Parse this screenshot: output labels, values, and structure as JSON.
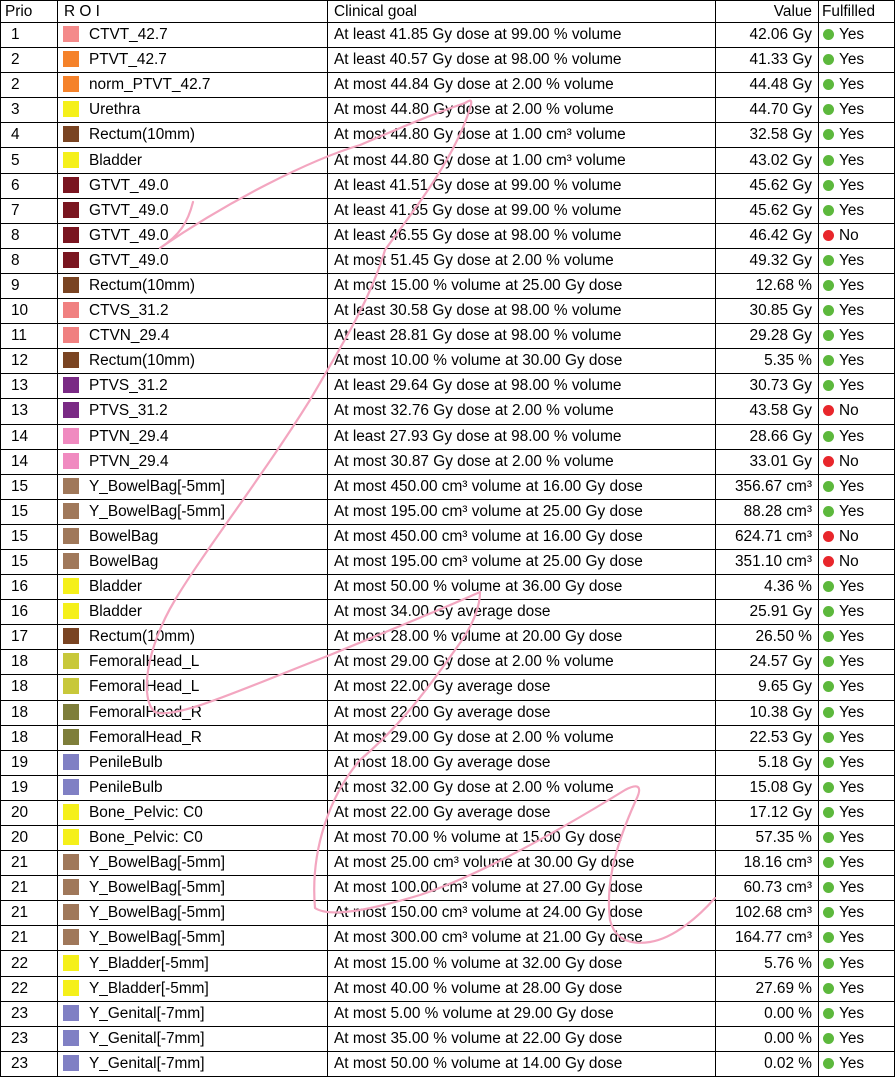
{
  "headers": {
    "prio": "Prio",
    "roi": "R O I",
    "goal": "Clinical goal",
    "value": "Value",
    "fulfilled": "Fulfilled"
  },
  "status_colors": {
    "yes": "#5cb83c",
    "no": "#e8262b"
  },
  "rows": [
    {
      "prio": "1",
      "roi": "CTVT_42.7",
      "color": "#f48a8a",
      "goal": "At least 41.85 Gy dose at 99.00 % volume",
      "value": "42.06 Gy",
      "ok": true,
      "status": "Yes"
    },
    {
      "prio": "2",
      "roi": "PTVT_42.7",
      "color": "#f5822a",
      "goal": "At least 40.57 Gy dose at 98.00 % volume",
      "value": "41.33 Gy",
      "ok": true,
      "status": "Yes"
    },
    {
      "prio": "2",
      "roi": "norm_PTVT_42.7",
      "color": "#f5822a",
      "goal": "At most 44.84 Gy dose at 2.00 % volume",
      "value": "44.48 Gy",
      "ok": true,
      "status": "Yes"
    },
    {
      "prio": "3",
      "roi": "Urethra",
      "color": "#f5f01a",
      "goal": "At most 44.80 Gy dose at 2.00 % volume",
      "value": "44.70 Gy",
      "ok": true,
      "status": "Yes"
    },
    {
      "prio": "4",
      "roi": "Rectum(10mm)",
      "color": "#7a4422",
      "goal": "At most 44.80 Gy dose at 1.00 cm³ volume",
      "value": "32.58 Gy",
      "ok": true,
      "status": "Yes"
    },
    {
      "prio": "5",
      "roi": "Bladder",
      "color": "#f5f01a",
      "goal": "At most 44.80 Gy dose at 1.00 cm³ volume",
      "value": "43.02 Gy",
      "ok": true,
      "status": "Yes"
    },
    {
      "prio": "6",
      "roi": "GTVT_49.0",
      "color": "#7a1520",
      "goal": "At least 41.51 Gy dose at 99.00 % volume",
      "value": "45.62 Gy",
      "ok": true,
      "status": "Yes"
    },
    {
      "prio": "7",
      "roi": "GTVT_49.0",
      "color": "#7a1520",
      "goal": "At least 41.85 Gy dose at 99.00 % volume",
      "value": "45.62 Gy",
      "ok": true,
      "status": "Yes"
    },
    {
      "prio": "8",
      "roi": "GTVT_49.0",
      "color": "#7a1520",
      "goal": "At least 46.55 Gy dose at 98.00 % volume",
      "value": "46.42 Gy",
      "ok": false,
      "status": "No"
    },
    {
      "prio": "8",
      "roi": "GTVT_49.0",
      "color": "#7a1520",
      "goal": "At most 51.45 Gy dose at 2.00 % volume",
      "value": "49.32 Gy",
      "ok": true,
      "status": "Yes"
    },
    {
      "prio": "9",
      "roi": "Rectum(10mm)",
      "color": "#7a4422",
      "goal": "At most 15.00 % volume at 25.00 Gy dose",
      "value": "12.68 %",
      "ok": true,
      "status": "Yes"
    },
    {
      "prio": "10",
      "roi": "CTVS_31.2",
      "color": "#f08080",
      "goal": "At least 30.58 Gy dose at 98.00 % volume",
      "value": "30.85 Gy",
      "ok": true,
      "status": "Yes"
    },
    {
      "prio": "11",
      "roi": "CTVN_29.4",
      "color": "#f08080",
      "goal": "At least 28.81 Gy dose at 98.00 % volume",
      "value": "29.28 Gy",
      "ok": true,
      "status": "Yes"
    },
    {
      "prio": "12",
      "roi": "Rectum(10mm)",
      "color": "#7a4422",
      "goal": "At most 10.00 % volume at 30.00 Gy dose",
      "value": "5.35 %",
      "ok": true,
      "status": "Yes"
    },
    {
      "prio": "13",
      "roi": "PTVS_31.2",
      "color": "#7a2a85",
      "goal": "At least 29.64 Gy dose at 98.00 % volume",
      "value": "30.73 Gy",
      "ok": true,
      "status": "Yes"
    },
    {
      "prio": "13",
      "roi": "PTVS_31.2",
      "color": "#7a2a85",
      "goal": "At most 32.76 Gy dose at 2.00 % volume",
      "value": "43.58 Gy",
      "ok": false,
      "status": "No"
    },
    {
      "prio": "14",
      "roi": "PTVN_29.4",
      "color": "#f08ac0",
      "goal": "At least 27.93 Gy dose at 98.00 % volume",
      "value": "28.66 Gy",
      "ok": true,
      "status": "Yes"
    },
    {
      "prio": "14",
      "roi": "PTVN_29.4",
      "color": "#f08ac0",
      "goal": "At most 30.87 Gy dose at 2.00 % volume",
      "value": "33.01 Gy",
      "ok": false,
      "status": "No"
    },
    {
      "prio": "15",
      "roi": "Y_BowelBag[-5mm]",
      "color": "#a0785a",
      "goal": "At most 450.00 cm³ volume at 16.00 Gy dose",
      "value": "356.67 cm³",
      "ok": true,
      "status": "Yes"
    },
    {
      "prio": "15",
      "roi": "Y_BowelBag[-5mm]",
      "color": "#a0785a",
      "goal": "At most 195.00 cm³ volume at 25.00 Gy dose",
      "value": "88.28 cm³",
      "ok": true,
      "status": "Yes"
    },
    {
      "prio": "15",
      "roi": "BowelBag",
      "color": "#a0785a",
      "goal": "At most 450.00 cm³ volume at 16.00 Gy dose",
      "value": "624.71 cm³",
      "ok": false,
      "status": "No"
    },
    {
      "prio": "15",
      "roi": "BowelBag",
      "color": "#a0785a",
      "goal": "At most 195.00 cm³ volume at 25.00 Gy dose",
      "value": "351.10 cm³",
      "ok": false,
      "status": "No"
    },
    {
      "prio": "16",
      "roi": "Bladder",
      "color": "#f5f01a",
      "goal": "At most 50.00 % volume at 36.00 Gy dose",
      "value": "4.36 %",
      "ok": true,
      "status": "Yes"
    },
    {
      "prio": "16",
      "roi": "Bladder",
      "color": "#f5f01a",
      "goal": "At most 34.00 Gy average dose",
      "value": "25.91 Gy",
      "ok": true,
      "status": "Yes"
    },
    {
      "prio": "17",
      "roi": "Rectum(10mm)",
      "color": "#7a4422",
      "goal": "At most 28.00 % volume at 20.00 Gy dose",
      "value": "26.50 %",
      "ok": true,
      "status": "Yes"
    },
    {
      "prio": "18",
      "roi": "FemoralHead_L",
      "color": "#c8c83a",
      "goal": "At most 29.00 Gy dose at 2.00 % volume",
      "value": "24.57 Gy",
      "ok": true,
      "status": "Yes"
    },
    {
      "prio": "18",
      "roi": "FemoralHead_L",
      "color": "#c8c83a",
      "goal": "At most 22.00 Gy average dose",
      "value": "9.65 Gy",
      "ok": true,
      "status": "Yes"
    },
    {
      "prio": "18",
      "roi": "FemoralHead_R",
      "color": "#7e7e3a",
      "goal": "At most 22.00 Gy average dose",
      "value": "10.38 Gy",
      "ok": true,
      "status": "Yes"
    },
    {
      "prio": "18",
      "roi": "FemoralHead_R",
      "color": "#7e7e3a",
      "goal": "At most 29.00 Gy dose at 2.00 % volume",
      "value": "22.53 Gy",
      "ok": true,
      "status": "Yes"
    },
    {
      "prio": "19",
      "roi": "PenileBulb",
      "color": "#8080c4",
      "goal": "At most 18.00 Gy average dose",
      "value": "5.18 Gy",
      "ok": true,
      "status": "Yes"
    },
    {
      "prio": "19",
      "roi": "PenileBulb",
      "color": "#8080c4",
      "goal": "At most 32.00 Gy dose at 2.00 % volume",
      "value": "15.08 Gy",
      "ok": true,
      "status": "Yes"
    },
    {
      "prio": "20",
      "roi": "Bone_Pelvic: C0",
      "color": "#f5f01a",
      "goal": "At most 22.00 Gy average dose",
      "value": "17.12 Gy",
      "ok": true,
      "status": "Yes"
    },
    {
      "prio": "20",
      "roi": "Bone_Pelvic: C0",
      "color": "#f5f01a",
      "goal": "At most 70.00 % volume at 15.00 Gy dose",
      "value": "57.35 %",
      "ok": true,
      "status": "Yes"
    },
    {
      "prio": "21",
      "roi": "Y_BowelBag[-5mm]",
      "color": "#a0785a",
      "goal": "At most 25.00 cm³ volume at 30.00 Gy dose",
      "value": "18.16 cm³",
      "ok": true,
      "status": "Yes"
    },
    {
      "prio": "21",
      "roi": "Y_BowelBag[-5mm]",
      "color": "#a0785a",
      "goal": "At most 100.00 cm³ volume at 27.00 Gy dose",
      "value": "60.73 cm³",
      "ok": true,
      "status": "Yes"
    },
    {
      "prio": "21",
      "roi": "Y_BowelBag[-5mm]",
      "color": "#a0785a",
      "goal": "At most 150.00 cm³ volume at 24.00 Gy dose",
      "value": "102.68 cm³",
      "ok": true,
      "status": "Yes"
    },
    {
      "prio": "21",
      "roi": "Y_BowelBag[-5mm]",
      "color": "#a0785a",
      "goal": "At most 300.00 cm³ volume at 21.00 Gy dose",
      "value": "164.77 cm³",
      "ok": true,
      "status": "Yes"
    },
    {
      "prio": "22",
      "roi": "Y_Bladder[-5mm]",
      "color": "#f5f01a",
      "goal": "At most 15.00 % volume at 32.00 Gy dose",
      "value": "5.76 %",
      "ok": true,
      "status": "Yes"
    },
    {
      "prio": "22",
      "roi": "Y_Bladder[-5mm]",
      "color": "#f5f01a",
      "goal": "At most 40.00 % volume at 28.00 Gy dose",
      "value": "27.69 %",
      "ok": true,
      "status": "Yes"
    },
    {
      "prio": "23",
      "roi": "Y_Genital[-7mm]",
      "color": "#8080c4",
      "goal": "At most 5.00 % volume at 29.00 Gy dose",
      "value": "0.00 %",
      "ok": true,
      "status": "Yes"
    },
    {
      "prio": "23",
      "roi": "Y_Genital[-7mm]",
      "color": "#8080c4",
      "goal": "At most 35.00 % volume at 22.00 Gy dose",
      "value": "0.00 %",
      "ok": true,
      "status": "Yes"
    },
    {
      "prio": "23",
      "roi": "Y_Genital[-7mm]",
      "color": "#8080c4",
      "goal": "At most 50.00 % volume at 14.00 Gy dose",
      "value": "0.02 %",
      "ok": true,
      "status": "Yes"
    }
  ]
}
